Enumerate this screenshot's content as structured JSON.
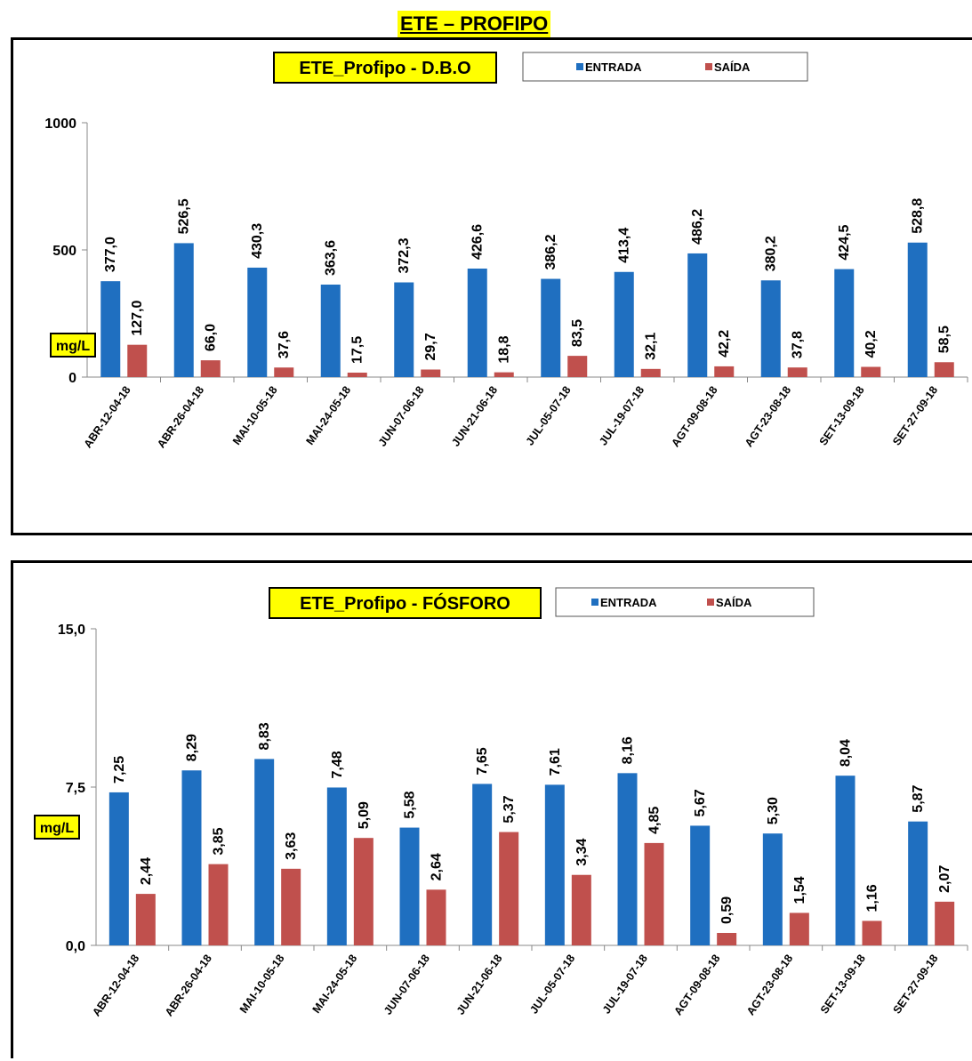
{
  "page_title": "ETE – PROFIPO",
  "colors": {
    "entrada": "#1f6fc0",
    "saida": "#c0504d",
    "title_bg": "#ffff00"
  },
  "chart_data": [
    {
      "type": "bar",
      "title": "ETE_Profipo - D.B.O",
      "ylabel": "mg/L",
      "ylim": [
        0,
        1000
      ],
      "yticks": [
        "0",
        "500",
        "1000"
      ],
      "ytick_values": [
        0,
        500,
        1000
      ],
      "legend_position": "top",
      "categories": [
        "ABR-12-04-18",
        "ABR-26-04-18",
        "MAI-10-05-18",
        "MAI-24-05-18",
        "JUN-07-06-18",
        "JUN-21-06-18",
        "JUL-05-07-18",
        "JUL-19-07-18",
        "AGT-09-08-18",
        "AGT-23-08-18",
        "SET-13-09-18",
        "SET-27-09-18"
      ],
      "series": [
        {
          "name": "ENTRADA",
          "color": "#1f6fc0",
          "values": [
            377.0,
            526.5,
            430.3,
            363.6,
            372.3,
            426.6,
            386.2,
            413.4,
            486.2,
            380.2,
            424.5,
            528.8
          ],
          "labels": [
            "377,0",
            "526,5",
            "430,3",
            "363,6",
            "372,3",
            "426,6",
            "386,2",
            "413,4",
            "486,2",
            "380,2",
            "424,5",
            "528,8"
          ]
        },
        {
          "name": "SAÍDA",
          "color": "#c0504d",
          "values": [
            127.0,
            66.0,
            37.6,
            17.5,
            29.7,
            18.8,
            83.5,
            32.1,
            42.2,
            37.8,
            40.2,
            58.5
          ],
          "labels": [
            "127,0",
            "66,0",
            "37,6",
            "17,5",
            "29,7",
            "18,8",
            "83,5",
            "32,1",
            "42,2",
            "37,8",
            "40,2",
            "58,5"
          ]
        }
      ]
    },
    {
      "type": "bar",
      "title": "ETE_Profipo - FÓSFORO",
      "ylabel": "mg/L",
      "ylim": [
        0,
        15
      ],
      "yticks": [
        "0,0",
        "7,5",
        "15,0"
      ],
      "ytick_values": [
        0,
        7.5,
        15
      ],
      "legend_position": "top",
      "categories": [
        "ABR-12-04-18",
        "ABR-26-04-18",
        "MAI-10-05-18",
        "MAI-24-05-18",
        "JUN-07-06-18",
        "JUN-21-06-18",
        "JUL-05-07-18",
        "JUL-19-07-18",
        "AGT-09-08-18",
        "AGT-23-08-18",
        "SET-13-09-18",
        "SET-27-09-18"
      ],
      "series": [
        {
          "name": "ENTRADA",
          "color": "#1f6fc0",
          "values": [
            7.25,
            8.29,
            8.83,
            7.48,
            5.58,
            7.65,
            7.61,
            8.16,
            5.67,
            5.3,
            8.04,
            5.87
          ],
          "labels": [
            "7,25",
            "8,29",
            "8,83",
            "7,48",
            "5,58",
            "7,65",
            "7,61",
            "8,16",
            "5,67",
            "5,30",
            "8,04",
            "5,87"
          ]
        },
        {
          "name": "SAÍDA",
          "color": "#c0504d",
          "values": [
            2.44,
            3.85,
            3.63,
            5.09,
            2.64,
            5.37,
            3.34,
            4.85,
            0.59,
            1.54,
            1.16,
            2.07
          ],
          "labels": [
            "2,44",
            "3,85",
            "3,63",
            "5,09",
            "2,64",
            "5,37",
            "3,34",
            "4,85",
            "0,59",
            "1,54",
            "1,16",
            "2,07"
          ]
        }
      ]
    }
  ]
}
